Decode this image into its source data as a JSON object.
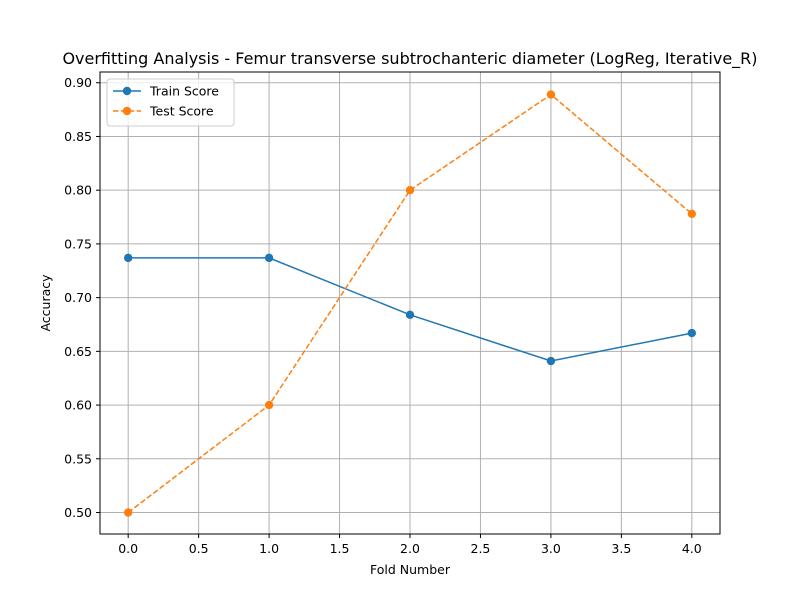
{
  "chart_data": {
    "type": "line",
    "title": "Overfitting Analysis - Femur transverse subtrochanteric diameter (LogReg, Iterative_R)",
    "xlabel": "Fold Number",
    "ylabel": "Accuracy",
    "x": [
      0,
      1,
      2,
      3,
      4
    ],
    "xlim": [
      -0.2,
      4.2
    ],
    "ylim": [
      0.48,
      0.91
    ],
    "xticks": [
      0.0,
      0.5,
      1.0,
      1.5,
      2.0,
      2.5,
      3.0,
      3.5,
      4.0
    ],
    "xtick_labels": [
      "0.0",
      "0.5",
      "1.0",
      "1.5",
      "2.0",
      "2.5",
      "3.0",
      "3.5",
      "4.0"
    ],
    "yticks": [
      0.5,
      0.55,
      0.6,
      0.65,
      0.7,
      0.75,
      0.8,
      0.85,
      0.9
    ],
    "ytick_labels": [
      "0.50",
      "0.55",
      "0.60",
      "0.65",
      "0.70",
      "0.75",
      "0.80",
      "0.85",
      "0.90"
    ],
    "grid": true,
    "legend_position": "top-left",
    "series": [
      {
        "name": "Train Score",
        "values": [
          0.737,
          0.737,
          0.684,
          0.641,
          0.667
        ],
        "color": "#1f77b4",
        "linestyle": "solid",
        "marker": "circle"
      },
      {
        "name": "Test Score",
        "values": [
          0.5,
          0.6,
          0.8,
          0.889,
          0.778
        ],
        "color": "#ff7f0e",
        "linestyle": "dashed",
        "marker": "circle"
      }
    ]
  }
}
